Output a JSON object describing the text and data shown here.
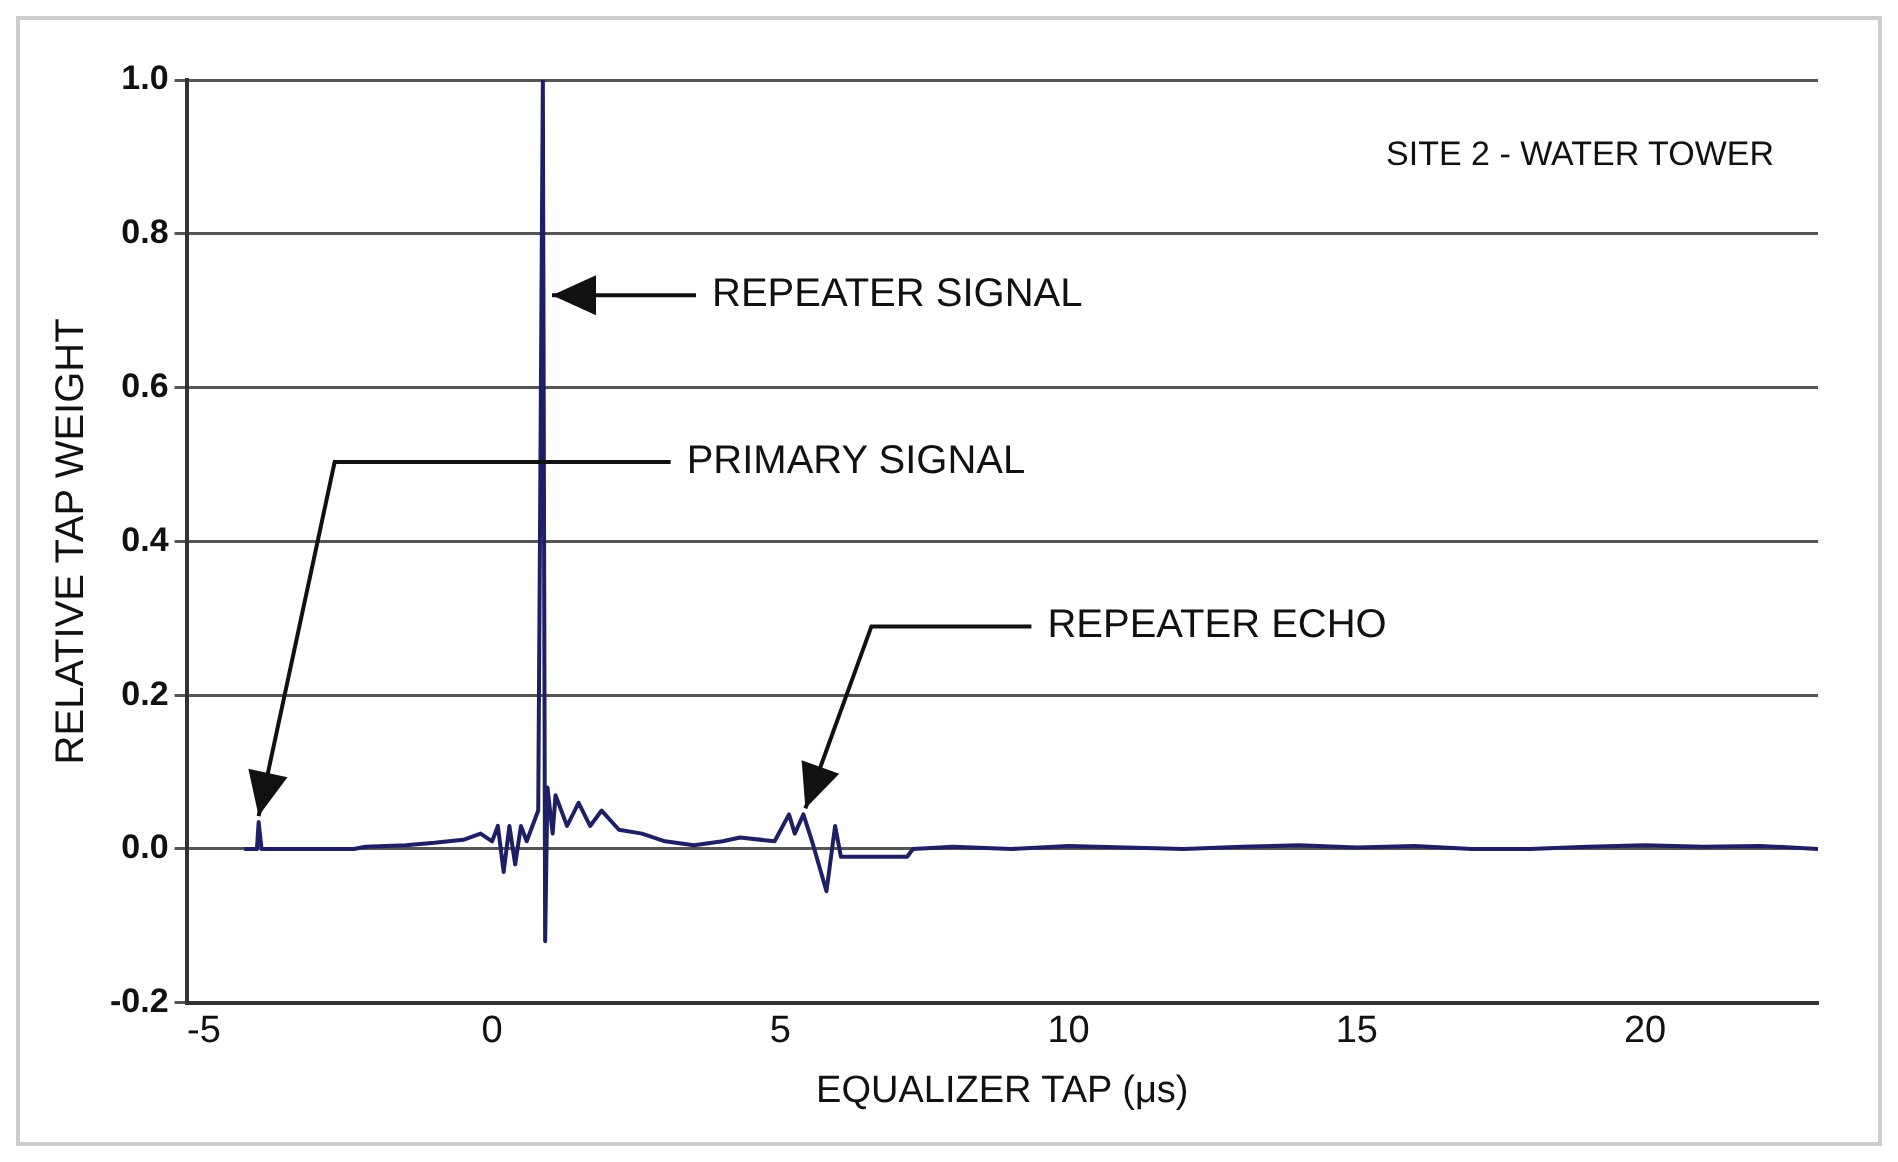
{
  "chart_data": {
    "type": "line",
    "title": "SITE 2 - WATER TOWER",
    "xlabel": "EQUALIZER TAP (μs)",
    "ylabel": "RELATIVE TAP WEIGHT",
    "x": [
      -4.3,
      -4.08,
      -4.05,
      -4.0,
      -3.9,
      -2.4,
      -2.2,
      -1.5,
      -1.0,
      -0.5,
      -0.2,
      0.0,
      0.1,
      0.2,
      0.3,
      0.4,
      0.5,
      0.6,
      0.8,
      0.88,
      0.92,
      0.96,
      1.05,
      1.1,
      1.3,
      1.5,
      1.7,
      1.9,
      2.2,
      2.6,
      3.0,
      3.5,
      4.0,
      4.3,
      4.9,
      5.15,
      5.25,
      5.4,
      5.55,
      5.8,
      5.95,
      6.05,
      7.2,
      7.3,
      8,
      9,
      10,
      11,
      12,
      13,
      14,
      15,
      16,
      17,
      18,
      19,
      20,
      21,
      22,
      23
    ],
    "values": [
      0,
      0,
      0.035,
      0,
      0,
      0,
      0.003,
      0.005,
      0.008,
      0.012,
      0.02,
      0.01,
      0.03,
      -0.03,
      0.03,
      -0.02,
      0.03,
      0.01,
      0.05,
      1.0,
      -0.12,
      0.08,
      0.02,
      0.07,
      0.03,
      0.06,
      0.03,
      0.05,
      0.025,
      0.02,
      0.01,
      0.005,
      0.01,
      0.015,
      0.01,
      0.045,
      0.02,
      0.045,
      0.01,
      -0.055,
      0.03,
      -0.01,
      -0.01,
      0,
      0.003,
      0,
      0.004,
      0.002,
      0,
      0.003,
      0.005,
      0.002,
      0.004,
      0,
      0,
      0.003,
      0.005,
      0.003,
      0.004,
      0
    ],
    "color": "#1f1f66",
    "xlim": [
      -5.3,
      23
    ],
    "ylim": [
      -0.2,
      1.0
    ],
    "xticks": [
      -5,
      0,
      5,
      10,
      15,
      20
    ],
    "yticks": [
      {
        "value": -0.2,
        "label": "-0.2"
      },
      {
        "value": 0,
        "label": "0.0"
      },
      {
        "value": 0.2,
        "label": "0.2"
      },
      {
        "value": 0.4,
        "label": "0.4"
      },
      {
        "value": 0.6,
        "label": "0.6"
      },
      {
        "value": 0.8,
        "label": "0.8"
      },
      {
        "value": 1.0,
        "label": "1.0"
      }
    ],
    "grid": "y",
    "legend": false,
    "marker": "none",
    "line_style": "solid",
    "annotations": [
      {
        "text": "REPEATER SIGNAL",
        "x": 0.9,
        "y": 0.72
      },
      {
        "text": "PRIMARY SIGNAL",
        "x": -4.05,
        "y": 0.035
      },
      {
        "text": "REPEATER ECHO",
        "x": 5.4,
        "y": 0.045
      }
    ]
  }
}
